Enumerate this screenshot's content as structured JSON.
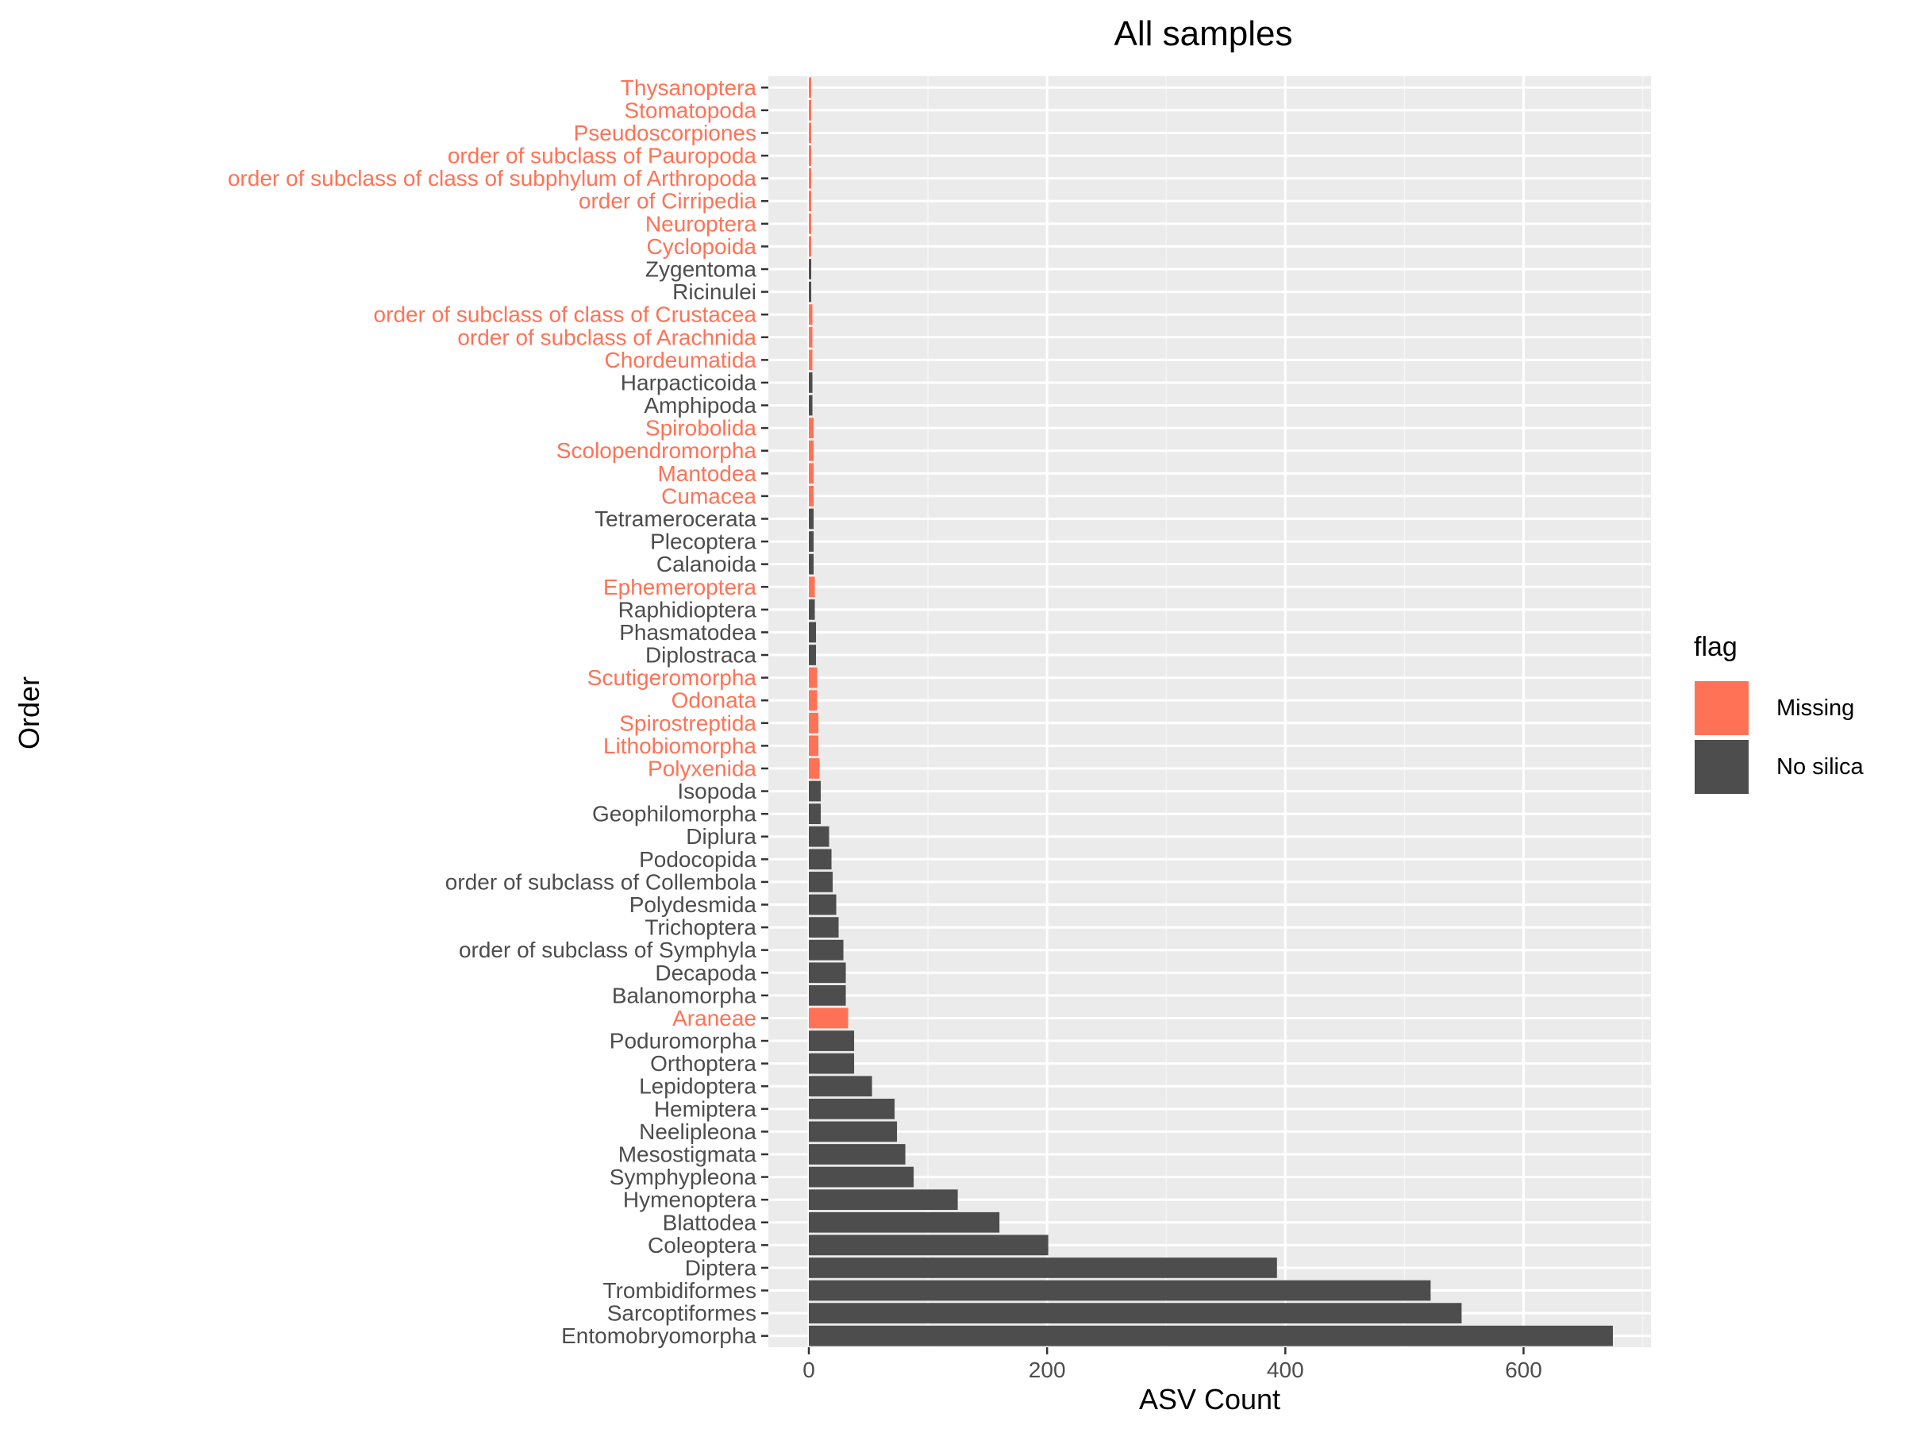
{
  "chart_data": {
    "type": "bar",
    "orientation": "horizontal",
    "title": "All samples",
    "xlabel": "ASV Count",
    "ylabel": "Order",
    "xlim": [
      -34,
      707
    ],
    "xticks": [
      0,
      200,
      400,
      600
    ],
    "xtick_labels": [
      "0",
      "200",
      "400",
      "600"
    ],
    "grid": true,
    "legend": {
      "title": "flag",
      "position": "right",
      "entries": [
        {
          "key": "Missing",
          "label": "Missing",
          "color": "#FF7256"
        },
        {
          "key": "No silica",
          "label": "No silica",
          "color": "#4D4D4D"
        }
      ]
    },
    "colors": {
      "panel": "#EBEBEB",
      "grid_major": "#FFFFFF",
      "grid_minor": "#F5F5F5",
      "tick_text": "#4D4D4D",
      "tick_mark": "#333333"
    },
    "categories": [
      "Entomobryomorpha",
      "Sarcoptiformes",
      "Trombidiformes",
      "Diptera",
      "Coleoptera",
      "Blattodea",
      "Hymenoptera",
      "Symphypleona",
      "Mesostigmata",
      "Neelipleona",
      "Hemiptera",
      "Lepidoptera",
      "Orthoptera",
      "Poduromorpha",
      "Araneae",
      "Balanomorpha",
      "Decapoda",
      "order of subclass of Symphyla",
      "Trichoptera",
      "Polydesmida",
      "order of subclass of Collembola",
      "Podocopida",
      "Diplura",
      "Geophilomorpha",
      "Isopoda",
      "Polyxenida",
      "Lithobiomorpha",
      "Spirostreptida",
      "Odonata",
      "Scutigeromorpha",
      "Diplostraca",
      "Phasmatodea",
      "Raphidioptera",
      "Ephemeroptera",
      "Calanoida",
      "Plecoptera",
      "Tetramerocerata",
      "Cumacea",
      "Mantodea",
      "Scolopendromorpha",
      "Spirobolida",
      "Amphipoda",
      "Harpacticoida",
      "Chordeumatida",
      "order of subclass of Arachnida",
      "order of subclass of class of Crustacea",
      "Ricinulei",
      "Zygentoma",
      "Cyclopoida",
      "Neuroptera",
      "order of Cirripedia",
      "order of subclass of class of subphylum of Arthropoda",
      "order of subclass of Pauropoda",
      "Pseudoscorpiones",
      "Stomatopoda",
      "Thysanoptera"
    ],
    "values": [
      675,
      548,
      522,
      393,
      201,
      160,
      125,
      88,
      81,
      74,
      72,
      53,
      38,
      38,
      33,
      31,
      31,
      29,
      25,
      23,
      20,
      19,
      17,
      10,
      10,
      9,
      8,
      8,
      7,
      7,
      6,
      6,
      5,
      5,
      4,
      4,
      4,
      4,
      4,
      4,
      4,
      3,
      3,
      3,
      3,
      3,
      2,
      2,
      2,
      2,
      2,
      2,
      2,
      2,
      2,
      2
    ],
    "flags": [
      "No silica",
      "No silica",
      "No silica",
      "No silica",
      "No silica",
      "No silica",
      "No silica",
      "No silica",
      "No silica",
      "No silica",
      "No silica",
      "No silica",
      "No silica",
      "No silica",
      "Missing",
      "No silica",
      "No silica",
      "No silica",
      "No silica",
      "No silica",
      "No silica",
      "No silica",
      "No silica",
      "No silica",
      "No silica",
      "Missing",
      "Missing",
      "Missing",
      "Missing",
      "Missing",
      "No silica",
      "No silica",
      "No silica",
      "Missing",
      "No silica",
      "No silica",
      "No silica",
      "Missing",
      "Missing",
      "Missing",
      "Missing",
      "No silica",
      "No silica",
      "Missing",
      "Missing",
      "Missing",
      "No silica",
      "No silica",
      "Missing",
      "Missing",
      "Missing",
      "Missing",
      "Missing",
      "Missing",
      "Missing",
      "Missing"
    ]
  }
}
